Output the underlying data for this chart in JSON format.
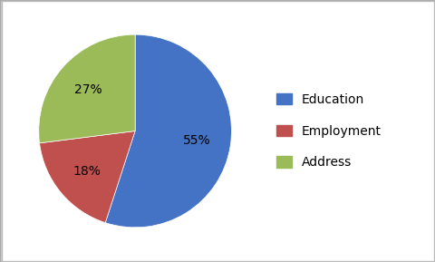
{
  "labels": [
    "Education",
    "Employment",
    "Address"
  ],
  "values": [
    55,
    18,
    27
  ],
  "colors": [
    "#4472C4",
    "#C0504D",
    "#9BBB59"
  ],
  "legend_labels": [
    "Education",
    "Employment",
    "Address"
  ],
  "background_color": "#FFFFFF",
  "startangle": 90,
  "figsize": [
    4.81,
    2.89
  ],
  "dpi": 100,
  "border_color": "#AAAAAA",
  "border_linewidth": 1.0
}
